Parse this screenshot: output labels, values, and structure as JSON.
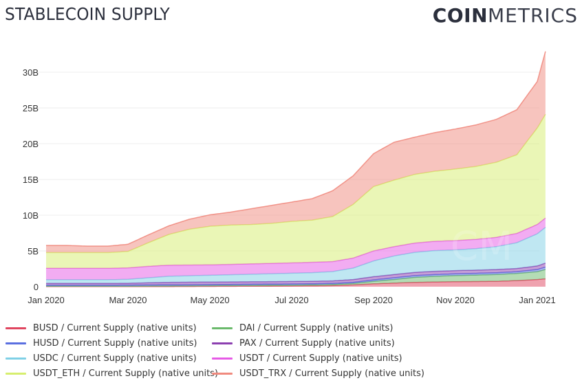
{
  "header": {
    "title": "STABLECOIN SUPPLY",
    "logo_bold": "COIN",
    "logo_light": "METRICS"
  },
  "chart_data": {
    "type": "area",
    "stacked": true,
    "title": "STABLECOIN SUPPLY",
    "xlabel": "",
    "ylabel": "",
    "ylim": [
      0,
      33
    ],
    "y_ticks": [
      {
        "value": 0,
        "label": "0"
      },
      {
        "value": 5,
        "label": "5B"
      },
      {
        "value": 10,
        "label": "10B"
      },
      {
        "value": 15,
        "label": "15B"
      },
      {
        "value": 20,
        "label": "20B"
      },
      {
        "value": 25,
        "label": "25B"
      },
      {
        "value": 30,
        "label": "30B"
      }
    ],
    "x_ticks": [
      {
        "value": 0,
        "label": "Jan 2020"
      },
      {
        "value": 2,
        "label": "Mar 2020"
      },
      {
        "value": 4,
        "label": "May 2020"
      },
      {
        "value": 6,
        "label": "Jul 2020"
      },
      {
        "value": 8,
        "label": "Sep 2020"
      },
      {
        "value": 10,
        "label": "Nov 2020"
      },
      {
        "value": 12,
        "label": "Jan 2021"
      }
    ],
    "x_unit": "months since Jan 2020",
    "x": [
      0,
      0.5,
      1,
      1.5,
      2,
      2.5,
      3,
      3.5,
      4,
      4.5,
      5,
      5.5,
      6,
      6.5,
      7,
      7.5,
      8,
      8.5,
      9,
      9.5,
      10,
      10.5,
      11,
      11.5,
      12,
      12.2
    ],
    "grid": true,
    "legend_position": "bottom",
    "series": [
      {
        "name": "BUSD / Current Supply (native units)",
        "color": "#e0455f",
        "values": [
          0.02,
          0.02,
          0.02,
          0.02,
          0.02,
          0.03,
          0.03,
          0.04,
          0.05,
          0.06,
          0.07,
          0.08,
          0.1,
          0.12,
          0.15,
          0.25,
          0.4,
          0.5,
          0.6,
          0.65,
          0.7,
          0.72,
          0.75,
          0.85,
          1.0,
          1.1
        ]
      },
      {
        "name": "DAI / Current Supply (native units)",
        "color": "#6ab96b",
        "values": [
          0.05,
          0.05,
          0.05,
          0.05,
          0.06,
          0.07,
          0.08,
          0.09,
          0.1,
          0.11,
          0.12,
          0.13,
          0.13,
          0.14,
          0.16,
          0.2,
          0.35,
          0.5,
          0.7,
          0.8,
          0.85,
          0.9,
          0.95,
          1.0,
          1.1,
          1.3
        ]
      },
      {
        "name": "HUSD / Current Supply (native units)",
        "color": "#5a6fe0",
        "values": [
          0.15,
          0.15,
          0.15,
          0.15,
          0.15,
          0.15,
          0.15,
          0.15,
          0.15,
          0.15,
          0.15,
          0.15,
          0.15,
          0.15,
          0.15,
          0.15,
          0.2,
          0.25,
          0.25,
          0.25,
          0.25,
          0.25,
          0.25,
          0.25,
          0.3,
          0.35
        ]
      },
      {
        "name": "PAX / Current Supply (native units)",
        "color": "#8c3fb0",
        "values": [
          0.25,
          0.25,
          0.25,
          0.25,
          0.25,
          0.3,
          0.35,
          0.35,
          0.35,
          0.35,
          0.35,
          0.35,
          0.35,
          0.35,
          0.35,
          0.4,
          0.45,
          0.45,
          0.45,
          0.45,
          0.45,
          0.45,
          0.45,
          0.45,
          0.5,
          0.55
        ]
      },
      {
        "name": "USDC / Current Supply (native units)",
        "color": "#7fd0e6",
        "values": [
          0.5,
          0.5,
          0.5,
          0.5,
          0.55,
          0.7,
          0.85,
          0.9,
          0.95,
          1.0,
          1.05,
          1.1,
          1.15,
          1.2,
          1.3,
          1.6,
          2.2,
          2.6,
          2.8,
          2.9,
          2.9,
          3.0,
          3.2,
          3.6,
          4.5,
          5.0
        ]
      },
      {
        "name": "USDT / Current Supply (native units)",
        "color": "#e65ae6",
        "values": [
          1.6,
          1.6,
          1.6,
          1.6,
          1.6,
          1.6,
          1.55,
          1.5,
          1.45,
          1.45,
          1.45,
          1.45,
          1.45,
          1.45,
          1.4,
          1.4,
          1.4,
          1.3,
          1.3,
          1.3,
          1.3,
          1.3,
          1.3,
          1.3,
          1.3,
          1.3
        ]
      },
      {
        "name": "USDT_ETH / Current Supply (native units)",
        "color": "#d6ee6e",
        "values": [
          2.2,
          2.2,
          2.2,
          2.2,
          2.3,
          3.3,
          4.3,
          5.0,
          5.4,
          5.5,
          5.5,
          5.6,
          5.8,
          5.9,
          6.3,
          7.5,
          9.0,
          9.3,
          9.6,
          9.8,
          10.0,
          10.2,
          10.5,
          11.0,
          13.5,
          14.5
        ]
      },
      {
        "name": "USDT_TRX / Current Supply (native units)",
        "color": "#f08a7e",
        "values": [
          1.0,
          1.0,
          0.9,
          0.9,
          1.0,
          1.1,
          1.2,
          1.4,
          1.6,
          1.8,
          2.2,
          2.5,
          2.7,
          3.0,
          3.6,
          4.0,
          4.6,
          5.3,
          5.2,
          5.4,
          5.6,
          5.8,
          6.0,
          6.3,
          6.5,
          8.8
        ]
      }
    ]
  },
  "legend": {
    "items": [
      {
        "label": "BUSD / Current Supply (native units)",
        "color": "#e0455f"
      },
      {
        "label": "DAI / Current Supply (native units)",
        "color": "#6ab96b"
      },
      {
        "label": "HUSD / Current Supply (native units)",
        "color": "#5a6fe0"
      },
      {
        "label": "PAX / Current Supply (native units)",
        "color": "#8c3fb0"
      },
      {
        "label": "USDC / Current Supply (native units)",
        "color": "#7fd0e6"
      },
      {
        "label": "USDT / Current Supply (native units)",
        "color": "#e65ae6"
      },
      {
        "label": "USDT_ETH / Current Supply (native units)",
        "color": "#d6ee6e"
      },
      {
        "label": "USDT_TRX / Current Supply (native units)",
        "color": "#f08a7e"
      }
    ]
  },
  "watermark": "CM"
}
